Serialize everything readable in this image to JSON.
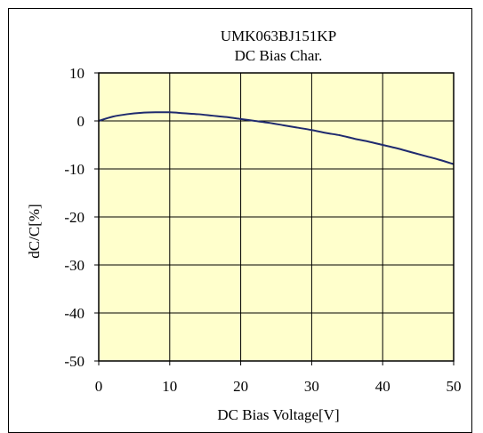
{
  "chart_data": {
    "type": "line",
    "title": "UMK063BJ151KP",
    "subtitle": "DC Bias Char.",
    "xlabel": "DC Bias Voltage[V]",
    "ylabel": "dC/C[%]",
    "xlim": [
      0,
      50
    ],
    "ylim": [
      -50,
      10
    ],
    "xticks": [
      "0",
      "10",
      "20",
      "30",
      "40",
      "50"
    ],
    "yticks": [
      "10",
      "0",
      "-10",
      "-20",
      "-30",
      "-40",
      "-50"
    ],
    "grid": true,
    "plot_background": "#ffffcc",
    "line_color": "#1f2a6e",
    "series": [
      {
        "x": [
          0,
          2,
          4,
          6,
          8,
          10,
          12,
          14,
          16,
          18,
          20,
          22,
          24,
          26,
          28,
          30,
          32,
          34,
          36,
          38,
          40,
          42,
          44,
          46,
          48,
          50
        ],
        "y": [
          0,
          0.9,
          1.4,
          1.7,
          1.8,
          1.8,
          1.6,
          1.4,
          1.1,
          0.8,
          0.4,
          0,
          -0.4,
          -0.9,
          -1.4,
          -1.9,
          -2.5,
          -3.0,
          -3.7,
          -4.3,
          -5.0,
          -5.7,
          -6.5,
          -7.3,
          -8.1,
          -9.0
        ]
      }
    ]
  }
}
